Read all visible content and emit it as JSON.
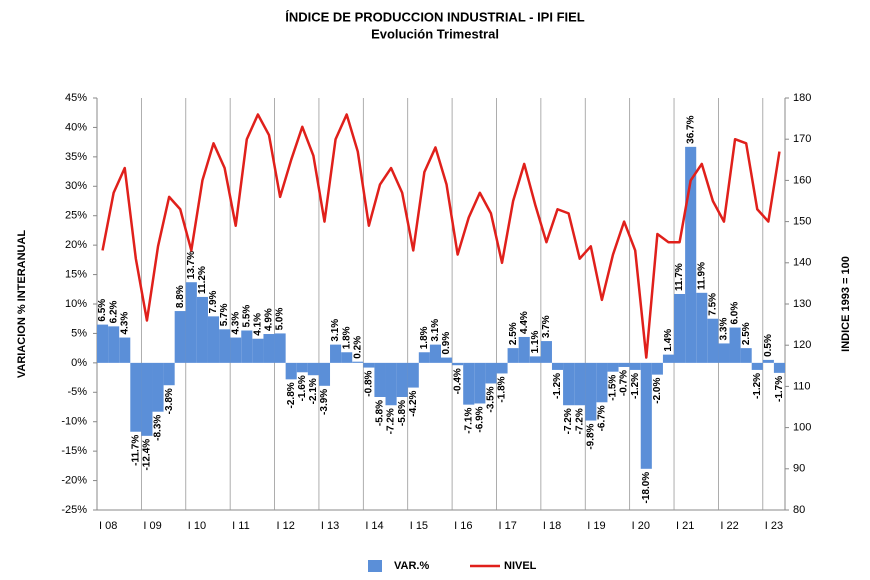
{
  "chart_data": {
    "type": "bar",
    "title": "ÍNDICE DE PRODUCCION INDUSTRIAL - IPI FIEL",
    "subtitle": "Evolución Trimestral",
    "y_label": "VARIACION % INTERANUAL",
    "y2_label": "INDICE 1993 = 100",
    "categories": [
      "I 08",
      null,
      null,
      null,
      "I 09",
      null,
      null,
      null,
      "I 10",
      null,
      null,
      null,
      "I 11",
      null,
      null,
      null,
      "I 12",
      null,
      null,
      null,
      "I 13",
      null,
      null,
      null,
      "I 14",
      null,
      null,
      null,
      "I 15",
      null,
      null,
      null,
      "I 16",
      null,
      null,
      null,
      "I 17",
      null,
      null,
      null,
      "I 18",
      null,
      null,
      null,
      "I 19",
      null,
      null,
      null,
      "I 20",
      null,
      null,
      null,
      "I 21",
      null,
      null,
      null,
      "I 22",
      null,
      null,
      null,
      "I 23",
      null
    ],
    "series": [
      {
        "name": "VAR.%",
        "color": "#5b8fd8",
        "values": [
          6.5,
          6.2,
          4.3,
          -11.7,
          -12.4,
          -8.3,
          -3.8,
          8.8,
          13.7,
          11.2,
          7.9,
          5.7,
          4.3,
          5.5,
          4.1,
          4.9,
          5.0,
          -2.8,
          -1.6,
          -2.1,
          -3.9,
          3.1,
          1.8,
          0.2,
          -0.8,
          -5.8,
          -7.2,
          -5.8,
          -4.2,
          1.8,
          3.1,
          0.9,
          -0.4,
          -7.1,
          -6.9,
          -3.5,
          -1.8,
          2.5,
          4.4,
          1.1,
          3.7,
          -1.2,
          -7.2,
          -7.2,
          -9.8,
          -6.7,
          -1.5,
          -0.7,
          -1.2,
          -18.0,
          -2.0,
          1.4,
          11.7,
          36.7,
          11.9,
          7.5,
          3.3,
          6.0,
          2.5,
          -1.2,
          0.5,
          -1.7
        ],
        "value_labels": [
          "6.5%",
          "6.2%",
          "4.3%",
          "-11.7%",
          "-12.4%",
          "-8.3%",
          "-3.8%",
          "8.8%",
          "13.7%",
          "11.2%",
          "7.9%",
          "5.7%",
          "4.3%",
          "5.5%",
          "4.1%",
          "4.9%",
          "5.0%",
          "-2.8%",
          "-1.6%",
          "-2.1%",
          "-3.9%",
          "3.1%",
          "1.8%",
          "0.2%",
          "-0.8%",
          "-5.8%",
          "-7.2%",
          "-5.8%",
          "-4.2%",
          "1.8%",
          "3.1%",
          "0.9%",
          "-0.4%",
          "-7.1%",
          "-6.9%",
          "-3.5%",
          "-1.8%",
          "2.5%",
          "4.4%",
          "1.1%",
          "3.7%",
          "-1.2%",
          "-7.2%",
          "-7.2%",
          "-9.8%",
          "-6.7%",
          "-1.5%",
          "-0.7%",
          "-1.2%",
          "-18.0%",
          "-2.0%",
          "1.4%",
          "11.7%",
          "36.7%",
          "11.9%",
          "7.5%",
          "3.3%",
          "6.0%",
          "2.5%",
          "-1.2%",
          "0.5%",
          "-1.7%"
        ]
      },
      {
        "name": "NIVEL",
        "type": "line",
        "axis": "y2",
        "color": "#e0201b",
        "values": [
          143,
          157,
          163,
          141,
          126,
          144,
          156,
          153,
          143,
          160,
          169,
          163,
          149,
          170,
          176,
          171,
          156,
          165,
          173,
          166,
          150,
          170,
          176,
          167,
          149,
          159,
          163,
          157,
          143,
          162,
          168,
          159,
          142,
          151,
          157,
          152,
          140,
          155,
          164,
          154,
          145,
          153,
          152,
          141,
          144,
          131,
          142,
          150,
          143,
          117,
          147,
          145,
          145,
          160,
          164,
          155,
          150,
          170,
          169,
          153,
          150,
          167
        ]
      }
    ],
    "ylim": [
      -25,
      45
    ],
    "yticks": [
      {
        "value": -25,
        "label": "-25%"
      },
      {
        "value": -20,
        "label": "-20%"
      },
      {
        "value": -15,
        "label": "-15%"
      },
      {
        "value": -10,
        "label": "-10%"
      },
      {
        "value": -5,
        "label": "-5%"
      },
      {
        "value": 0,
        "label": "0%"
      },
      {
        "value": 5,
        "label": "5%"
      },
      {
        "value": 10,
        "label": "10%"
      },
      {
        "value": 15,
        "label": "15%"
      },
      {
        "value": 20,
        "label": "20%"
      },
      {
        "value": 25,
        "label": "25%"
      },
      {
        "value": 30,
        "label": "30%"
      },
      {
        "value": 35,
        "label": "35%"
      },
      {
        "value": 40,
        "label": "40%"
      },
      {
        "value": 45,
        "label": "45%"
      }
    ],
    "y2lim": [
      80,
      180
    ],
    "y2ticks": [
      80,
      90,
      100,
      110,
      120,
      130,
      140,
      150,
      160,
      170,
      180
    ],
    "grid": true
  }
}
